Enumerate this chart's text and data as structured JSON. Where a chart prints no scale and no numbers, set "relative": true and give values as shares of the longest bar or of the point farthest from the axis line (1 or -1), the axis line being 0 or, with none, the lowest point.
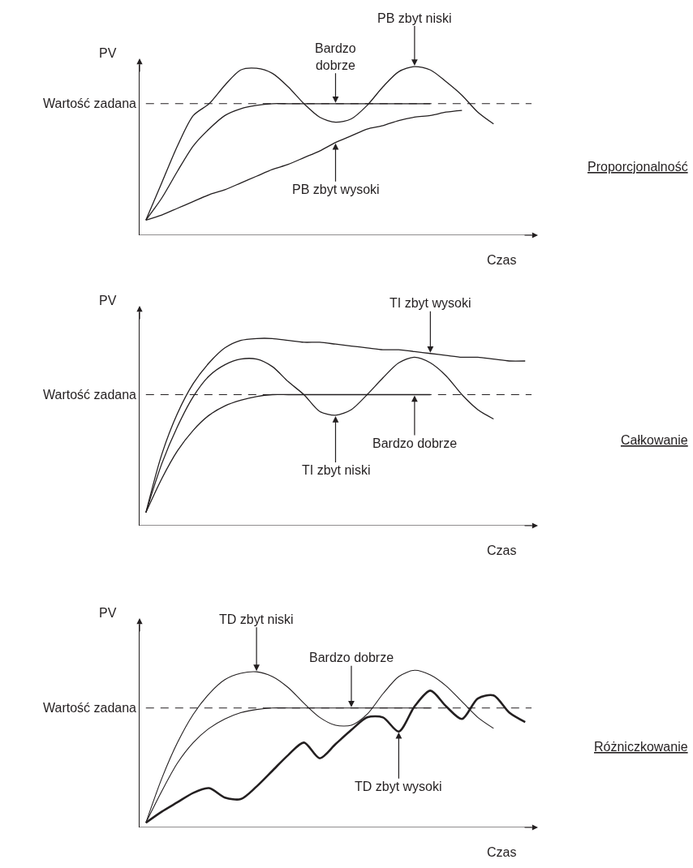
{
  "chart_data": [
    {
      "type": "line",
      "xlabel": "Czas",
      "ylabel": "PV",
      "relative": true,
      "marker": "none",
      "line_style": "solid",
      "categories": [
        null,
        null,
        null,
        null,
        null,
        null,
        null,
        null,
        null,
        null,
        null,
        null,
        null,
        null,
        null,
        null,
        null,
        null,
        null,
        null,
        null,
        null,
        null
      ],
      "series": [
        {
          "color": "#231f20",
          "values": [
            0.09,
            0.31,
            0.53,
            0.71,
            0.78,
            0.89,
            0.98,
            0.99,
            0.96,
            0.88,
            0.78,
            0.7,
            0.67,
            0.69,
            0.77,
            0.88,
            0.97,
            1.0,
            0.98,
            0.91,
            0.83,
            0.73,
            0.66
          ]
        },
        {
          "color": "#231f20",
          "values": [
            0.09,
            0.22,
            0.38,
            0.53,
            0.63,
            0.71,
            0.75,
            0.77,
            0.78,
            0.78,
            0.78,
            0.78,
            0.78,
            0.78,
            0.78,
            0.78,
            0.78,
            0.78,
            0.78,
            null,
            null,
            null,
            null
          ]
        },
        {
          "color": "#231f20",
          "values": [
            0.09,
            0.12,
            0.16,
            0.2,
            0.24,
            0.27,
            0.31,
            0.35,
            0.39,
            0.42,
            0.46,
            0.5,
            0.55,
            0.59,
            0.63,
            0.65,
            0.68,
            0.7,
            0.71,
            0.73,
            0.74,
            null,
            null
          ]
        }
      ],
      "ref_lines": [
        {
          "axis": "y",
          "value": 0.78,
          "label": "Wartość zadana",
          "color": "#231f20",
          "line_style": "dashed"
        }
      ],
      "annotations": [
        "PB zbyt niski",
        "Bardzo\ndobrze",
        "PB zbyt wysoki",
        "Proporcjonalność"
      ]
    },
    {
      "type": "line",
      "xlabel": "Czas",
      "ylabel": "PV",
      "relative": true,
      "marker": "none",
      "line_style": "solid",
      "categories": [
        null,
        null,
        null,
        null,
        null,
        null,
        null,
        null,
        null,
        null,
        null,
        null,
        null,
        null,
        null,
        null,
        null,
        null,
        null,
        null,
        null,
        null,
        null,
        null,
        null
      ],
      "series": [
        {
          "color": "#231f20",
          "values": [
            0.07,
            0.38,
            0.6,
            0.76,
            0.87,
            0.95,
            0.99,
            1.0,
            1.0,
            0.99,
            0.98,
            0.98,
            0.97,
            0.96,
            0.95,
            0.94,
            0.94,
            0.93,
            0.92,
            0.91,
            0.9,
            0.9,
            0.89,
            0.88,
            0.88
          ]
        },
        {
          "color": "#231f20",
          "values": [
            0.07,
            0.33,
            0.53,
            0.69,
            0.8,
            0.86,
            0.89,
            0.89,
            0.85,
            0.77,
            0.7,
            0.61,
            0.59,
            0.62,
            0.7,
            0.79,
            0.87,
            0.9,
            0.87,
            0.8,
            0.7,
            0.62,
            0.57,
            null,
            null
          ]
        },
        {
          "color": "#231f20",
          "values": [
            0.07,
            0.25,
            0.4,
            0.51,
            0.59,
            0.64,
            0.67,
            0.69,
            0.7,
            0.7,
            0.7,
            0.7,
            0.7,
            0.7,
            0.7,
            0.7,
            0.7,
            0.7,
            0.7,
            null,
            null,
            null,
            null,
            null,
            null
          ]
        }
      ],
      "ref_lines": [
        {
          "axis": "y",
          "value": 0.7,
          "label": "Wartość zadana",
          "color": "#231f20",
          "line_style": "dashed"
        }
      ],
      "annotations": [
        "TI zbyt wysoki",
        "Bardzo dobrze",
        "TI zbyt niski",
        "Całkowanie"
      ]
    },
    {
      "type": "line",
      "xlabel": "Czas",
      "ylabel": "PV",
      "relative": true,
      "marker": "none",
      "line_style": "solid",
      "categories": [
        null,
        null,
        null,
        null,
        null,
        null,
        null,
        null,
        null,
        null,
        null,
        null,
        null,
        null,
        null,
        null,
        null,
        null,
        null,
        null,
        null,
        null,
        null,
        null,
        null
      ],
      "series": [
        {
          "color": "#231f20",
          "values": [
            0.03,
            0.31,
            0.54,
            0.72,
            0.85,
            0.94,
            0.98,
            0.99,
            0.96,
            0.89,
            0.79,
            0.7,
            0.65,
            0.65,
            0.72,
            0.85,
            0.96,
            1.0,
            0.97,
            0.9,
            0.8,
            0.7,
            0.63,
            null,
            null
          ]
        },
        {
          "color": "#231f20",
          "values": [
            0.03,
            0.23,
            0.41,
            0.54,
            0.63,
            0.69,
            0.73,
            0.75,
            0.76,
            0.76,
            0.76,
            0.76,
            0.76,
            0.76,
            0.76,
            0.76,
            0.76,
            0.76,
            0.76,
            null,
            null,
            null,
            null,
            null,
            null
          ]
        },
        {
          "color": "#231f20",
          "values": [
            0.03,
            0.1,
            0.16,
            0.22,
            0.25,
            0.19,
            0.18,
            0.26,
            0.36,
            0.46,
            0.54,
            0.44,
            0.53,
            0.62,
            0.7,
            0.7,
            0.61,
            0.77,
            0.87,
            0.77,
            0.69,
            0.82,
            0.84,
            0.73,
            0.67
          ]
        }
      ],
      "ref_lines": [
        {
          "axis": "y",
          "value": 0.76,
          "label": "Wartość zadana",
          "color": "#231f20",
          "line_style": "dashed"
        }
      ],
      "annotations": [
        "TD zbyt niski",
        "Bardzo dobrze",
        "TD zbyt wysoki",
        "Różniczkowanie"
      ]
    }
  ]
}
